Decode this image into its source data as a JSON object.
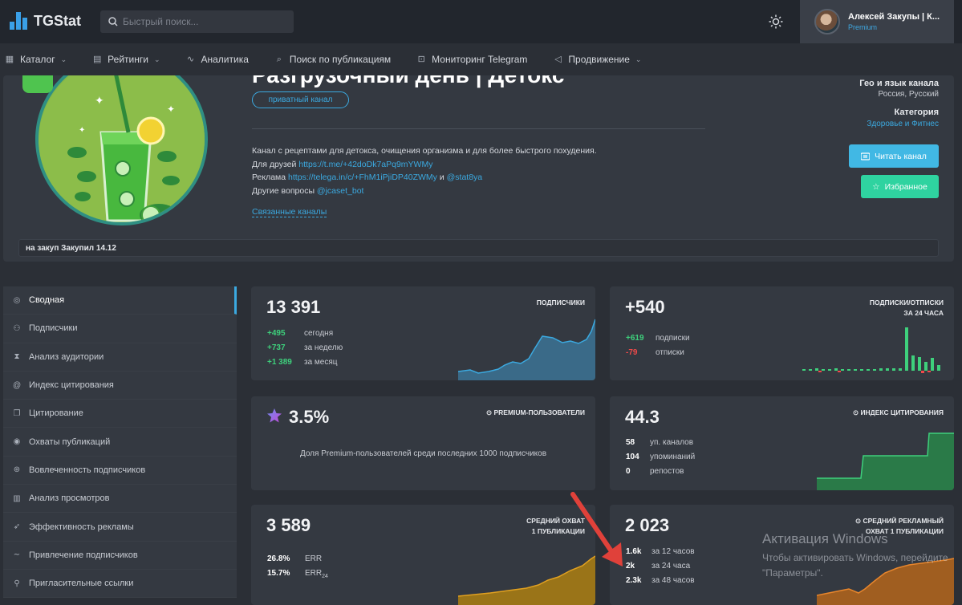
{
  "topbar": {
    "logo_text": "TGStat",
    "search_placeholder": "Быстрый поиск...",
    "profile_name": "Алексей Закупы | К...",
    "profile_status": "Premium"
  },
  "nav": [
    {
      "label": "Каталог",
      "icon": "grid-icon",
      "dropdown": true
    },
    {
      "label": "Рейтинги",
      "icon": "ranking-icon",
      "dropdown": true
    },
    {
      "label": "Аналитика",
      "icon": "chart-icon",
      "dropdown": false
    },
    {
      "label": "Поиск по публикациям",
      "icon": "search-icon",
      "dropdown": false
    },
    {
      "label": "Мониторинг Telegram",
      "icon": "monitor-icon",
      "dropdown": false
    },
    {
      "label": "Продвижение",
      "icon": "megaphone-icon",
      "dropdown": true
    }
  ],
  "channel": {
    "title": "Разгрузочный день | Детокс",
    "private_badge": "приватный канал",
    "desc_line1": "Канал с рецептами для детокса, очищения организма и для более быстрого похудения.",
    "friends_label": "Для друзей",
    "friends_link": "https://t.me/+42doDk7aPq9mYWMy",
    "ads_label": "Реклама",
    "ads_link": "https://telega.in/c/+FhM1iPjiDP40ZWMy",
    "ads_and": "и",
    "ads_handle": "@stat8ya",
    "other_label": "Другие вопросы",
    "other_handle": "@jcaset_bot",
    "related": "Связанные каналы",
    "geo_label": "Гео и язык канала",
    "geo_value": "Россия, Русский",
    "category_label": "Категория",
    "category_value": "Здоровье и Фитнес",
    "read_button": "Читать канал",
    "fav_button": "Избранное",
    "note": "на закуп Закупил 14.12"
  },
  "sidebar": [
    {
      "label": "Сводная",
      "icon": "summary-icon"
    },
    {
      "label": "Подписчики",
      "icon": "users-icon"
    },
    {
      "label": "Анализ аудитории",
      "icon": "audience-icon"
    },
    {
      "label": "Индекс цитирования",
      "icon": "at-icon"
    },
    {
      "label": "Цитирование",
      "icon": "quote-icon"
    },
    {
      "label": "Охваты публикаций",
      "icon": "eye-icon"
    },
    {
      "label": "Вовлеченность подписчиков",
      "icon": "engagement-icon"
    },
    {
      "label": "Анализ просмотров",
      "icon": "bar-chart-icon"
    },
    {
      "label": "Эффективность рекламы",
      "icon": "rocket-icon"
    },
    {
      "label": "Привлечение подписчиков",
      "icon": "trend-icon"
    },
    {
      "label": "Пригласительные ссылки",
      "icon": "link-icon"
    }
  ],
  "cards": {
    "subs": {
      "value": "13 391",
      "title": "ПОДПИСЧИКИ",
      "rows": [
        {
          "v": "+495",
          "l": "сегодня"
        },
        {
          "v": "+737",
          "l": "за неделю"
        },
        {
          "v": "+1 389",
          "l": "за месяц"
        }
      ]
    },
    "net": {
      "value": "+540",
      "title1": "ПОДПИСКИ/ОТПИСКИ",
      "title2": "ЗА 24 ЧАСА",
      "rows": [
        {
          "v": "+619",
          "l": "подписки"
        },
        {
          "v": "-79",
          "l": "отписки"
        }
      ]
    },
    "premium": {
      "value": "3.5%",
      "title": "PREMIUM-ПОЛЬЗОВАТЕЛИ",
      "desc": "Доля Premium-пользователей среди последних 1000 подписчиков"
    },
    "citation": {
      "value": "44.3",
      "title": "ИНДЕКС ЦИТИРОВАНИЯ",
      "rows": [
        {
          "v": "58",
          "l": "уп. каналов"
        },
        {
          "v": "104",
          "l": "упоминаний"
        },
        {
          "v": "0",
          "l": "репостов"
        }
      ]
    },
    "reach": {
      "value": "3 589",
      "title1": "СРЕДНИЙ ОХВАТ",
      "title2": "1 ПУБЛИКАЦИИ",
      "rows": [
        {
          "v": "26.8%",
          "l": "ERR"
        },
        {
          "v": "15.7%",
          "l": "ERR",
          "sub": "24"
        }
      ]
    },
    "adreach": {
      "value": "2 023",
      "title1": "СРЕДНИЙ РЕКЛАМНЫЙ",
      "title2": "ОХВАТ 1 ПУБЛИКАЦИИ",
      "rows": [
        {
          "v": "1.6k",
          "l": "за 12 часов"
        },
        {
          "v": "2k",
          "l": "за 24 часа"
        },
        {
          "v": "2.3k",
          "l": "за 48 часов"
        }
      ]
    }
  },
  "watermark": {
    "title": "Активация Windows",
    "line1": "Чтобы активировать Windows, перейдите",
    "line2": "\"Параметры\"."
  },
  "colors": {
    "accent": "#3ba9e0",
    "positive": "#3ed07c",
    "negative": "#f04a4a",
    "reach_chart": "#e0a020",
    "ad_chart": "#e8862c"
  }
}
